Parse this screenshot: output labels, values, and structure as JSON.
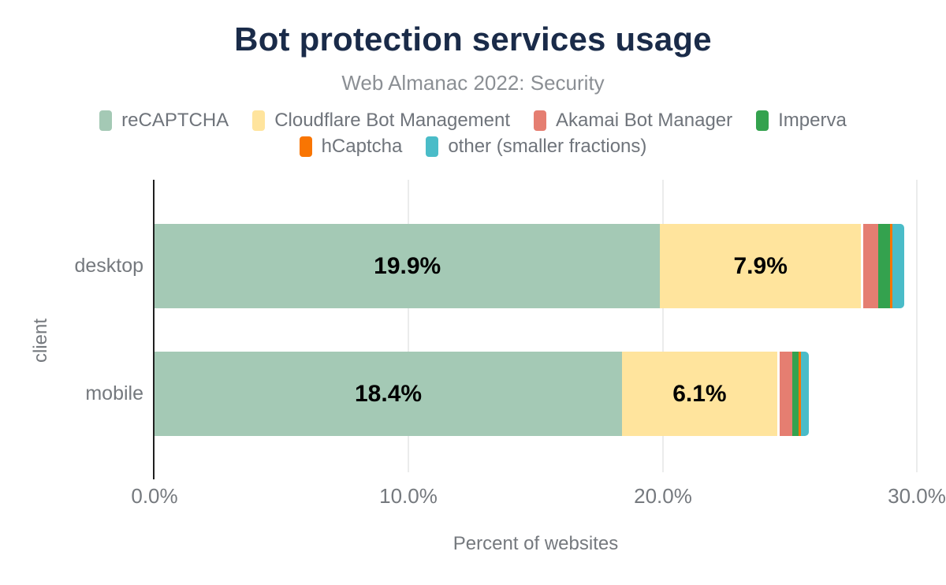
{
  "chart_data": {
    "type": "bar",
    "orientation": "horizontal",
    "stacked": true,
    "title": "Bot protection services usage",
    "subtitle": "Web Almanac 2022: Security",
    "categories": [
      "desktop",
      "mobile"
    ],
    "series": [
      {
        "name": "reCAPTCHA",
        "color": "#a4c9b5",
        "values": [
          19.9,
          18.4
        ]
      },
      {
        "name": "Cloudflare Bot Management",
        "color": "#ffe49d",
        "values": [
          7.9,
          6.1
        ]
      },
      {
        "name": "Akamai Bot Manager",
        "color": "#e57e71",
        "values": [
          0.6,
          0.5
        ]
      },
      {
        "name": "Imperva",
        "color": "#34a24e",
        "values": [
          0.45,
          0.25
        ]
      },
      {
        "name": "hCaptcha",
        "color": "#f97502",
        "values": [
          0.1,
          0.1
        ]
      },
      {
        "name": "other (smaller fractions)",
        "color": "#4abcc8",
        "values": [
          0.45,
          0.3
        ]
      }
    ],
    "value_labels": [
      [
        "19.9%",
        "7.9%"
      ],
      [
        "18.4%",
        "6.1%"
      ]
    ],
    "xlabel": "Percent of websites",
    "ylabel": "client",
    "xlim": [
      0,
      30
    ],
    "x_ticks": [
      {
        "value": 0,
        "label": "0.0%"
      },
      {
        "value": 10,
        "label": "10.0%"
      },
      {
        "value": 20,
        "label": "20.0%"
      },
      {
        "value": 30,
        "label": "30.0%"
      }
    ],
    "legend_rows": [
      [
        "reCAPTCHA",
        "Cloudflare Bot Management",
        "Akamai Bot Manager",
        "Imperva"
      ],
      [
        "hCaptcha",
        "other (smaller fractions)"
      ]
    ],
    "grid": true,
    "legend_position": "top"
  },
  "colors": {
    "title": "#1a2b49",
    "subtitle": "#8b8f94",
    "axis_text": "#75797e",
    "legend_text": "#6f747b",
    "value_label": "#000000",
    "gridline": "#ebecec",
    "axis_line": "#202020",
    "background": "#ffffff"
  }
}
